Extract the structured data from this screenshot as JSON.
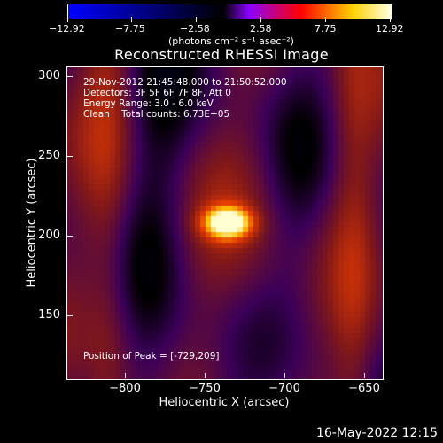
{
  "colorbar": {
    "ticks": [
      "−12.92",
      "−7.75",
      "−2.58",
      "2.58",
      "7.75",
      "12.92"
    ],
    "unit_label": "(photons cm⁻² s⁻¹ asec⁻²)",
    "colors": [
      "#0000ff",
      "#000000",
      "#8b00ff",
      "#ff0000",
      "#ffd000",
      "#ffffe0"
    ]
  },
  "title": "Reconstructed RHESSI Image",
  "annotations": {
    "time_range": "29-Nov-2012 21:45:48.000 to 21:50:52.000",
    "detectors": "Detectors: 3F 5F 6F 7F 8F, Att 0",
    "energy_range": "Energy Range: 3.0 - 6.0 keV",
    "clean_counts": "Clean    Total counts: 6.73E+05",
    "peak_position": "Position of Peak = [-729,209]"
  },
  "axes": {
    "xlabel": "Heliocentric X (arcsec)",
    "ylabel": "Heliocentric Y (arcsec)",
    "xticks": [
      "−800",
      "−750",
      "−700",
      "−650"
    ],
    "yticks": [
      "300",
      "250",
      "200",
      "150"
    ]
  },
  "footer": {
    "timestamp": "16-May-2022 12:15"
  }
}
